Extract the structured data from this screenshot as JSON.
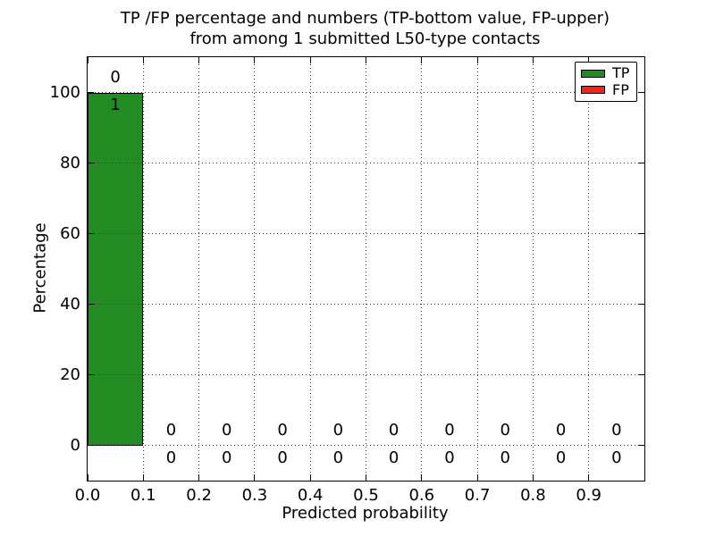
{
  "chart_data": {
    "type": "bar",
    "title_line1": "TP /FP percentage and numbers (TP-bottom value, FP-upper)",
    "title_line2": "from among 1 submitted L50-type contacts",
    "xlabel": "Predicted probability",
    "ylabel": "Percentage",
    "xlim": [
      0.0,
      1.0
    ],
    "ylim": [
      -10,
      110
    ],
    "grid": "dotted",
    "legend_position": "upper right",
    "background_color": "#ffffff",
    "axes_color": "#000000",
    "xticks": [
      {
        "value": 0.0,
        "label": "0.0"
      },
      {
        "value": 0.1,
        "label": "0.1"
      },
      {
        "value": 0.2,
        "label": "0.2"
      },
      {
        "value": 0.3,
        "label": "0.3"
      },
      {
        "value": 0.4,
        "label": "0.4"
      },
      {
        "value": 0.5,
        "label": "0.5"
      },
      {
        "value": 0.6,
        "label": "0.6"
      },
      {
        "value": 0.7,
        "label": "0.7"
      },
      {
        "value": 0.8,
        "label": "0.8"
      },
      {
        "value": 0.9,
        "label": "0.9"
      }
    ],
    "yticks": [
      {
        "value": 0,
        "label": "0"
      },
      {
        "value": 20,
        "label": "20"
      },
      {
        "value": 40,
        "label": "40"
      },
      {
        "value": 60,
        "label": "60"
      },
      {
        "value": 80,
        "label": "80"
      },
      {
        "value": 100,
        "label": "100"
      }
    ],
    "series": [
      {
        "name": "TP",
        "color": "#228b22"
      },
      {
        "name": "FP",
        "color": "#f92020"
      }
    ],
    "bins": [
      {
        "range": [
          0.0,
          0.1
        ],
        "tp_pct": 100,
        "fp_pct": 0,
        "tp_count": 1,
        "fp_count": 0
      },
      {
        "range": [
          0.1,
          0.2
        ],
        "tp_pct": 0,
        "fp_pct": 0,
        "tp_count": 0,
        "fp_count": 0
      },
      {
        "range": [
          0.2,
          0.3
        ],
        "tp_pct": 0,
        "fp_pct": 0,
        "tp_count": 0,
        "fp_count": 0
      },
      {
        "range": [
          0.3,
          0.4
        ],
        "tp_pct": 0,
        "fp_pct": 0,
        "tp_count": 0,
        "fp_count": 0
      },
      {
        "range": [
          0.4,
          0.5
        ],
        "tp_pct": 0,
        "fp_pct": 0,
        "tp_count": 0,
        "fp_count": 0
      },
      {
        "range": [
          0.5,
          0.6
        ],
        "tp_pct": 0,
        "fp_pct": 0,
        "tp_count": 0,
        "fp_count": 0
      },
      {
        "range": [
          0.6,
          0.7
        ],
        "tp_pct": 0,
        "fp_pct": 0,
        "tp_count": 0,
        "fp_count": 0
      },
      {
        "range": [
          0.7,
          0.8
        ],
        "tp_pct": 0,
        "fp_pct": 0,
        "tp_count": 0,
        "fp_count": 0
      },
      {
        "range": [
          0.8,
          0.9
        ],
        "tp_pct": 0,
        "fp_pct": 0,
        "tp_count": 0,
        "fp_count": 0
      },
      {
        "range": [
          0.9,
          1.0
        ],
        "tp_pct": 0,
        "fp_pct": 0,
        "tp_count": 0,
        "fp_count": 0
      }
    ]
  }
}
